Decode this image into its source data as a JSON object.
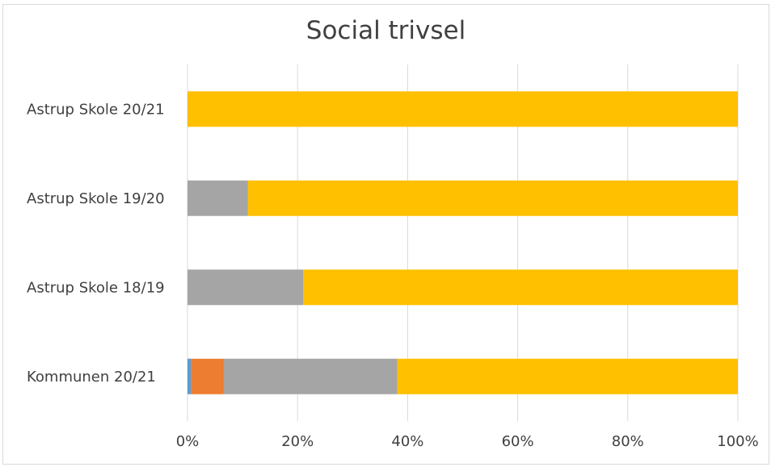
{
  "chart_data": {
    "type": "bar",
    "orientation": "horizontal",
    "stacked": "percent",
    "title": "Social trivsel",
    "categories": [
      "Astrup Skole 20/21",
      "Astrup Skole 19/20",
      "Astrup Skole 18/19",
      "Kommunen 20/21"
    ],
    "series": [
      {
        "color": "#5B9BD5",
        "values": [
          0,
          0,
          0,
          0.6
        ]
      },
      {
        "color": "#ED7D31",
        "values": [
          0,
          0,
          0,
          6.0
        ]
      },
      {
        "color": "#A5A5A5",
        "values": [
          0,
          11.0,
          21.0,
          31.5
        ]
      },
      {
        "color": "#FFC000",
        "values": [
          100,
          89.0,
          79.0,
          61.9
        ]
      }
    ],
    "xlim": [
      0,
      100
    ],
    "x_ticks": [
      "0%",
      "20%",
      "40%",
      "60%",
      "80%",
      "100%"
    ],
    "grid": true,
    "legend": "none"
  }
}
